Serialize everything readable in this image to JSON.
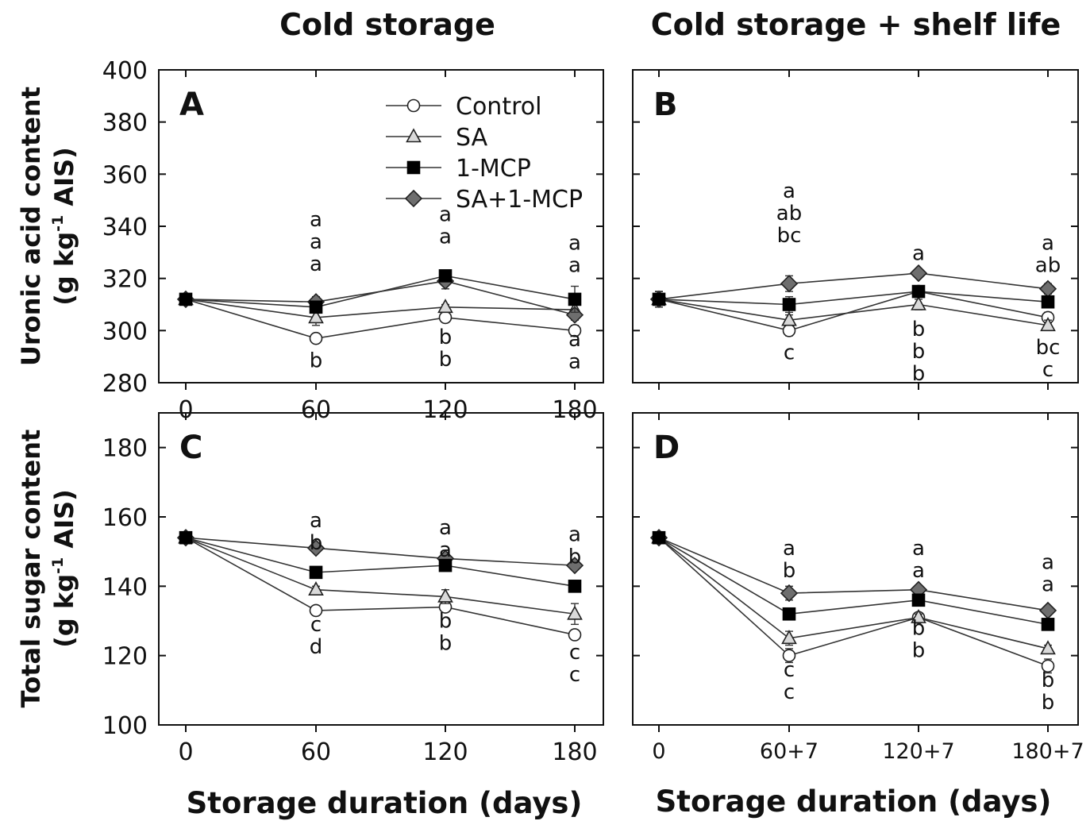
{
  "column_titles": [
    "Cold storage",
    "Cold storage + shelf life"
  ],
  "xlabel": "Storage duration (days)",
  "ylabels": {
    "top": {
      "line1": "Uronic acid content",
      "line2_pre": "(g kg",
      "line2_sup": "-1",
      "line2_post": " AIS)"
    },
    "bottom": {
      "line1": "Total sugar content",
      "line2_pre": "(g kg",
      "line2_sup": "-1",
      "line2_post": " AIS)"
    }
  },
  "legend": [
    {
      "name": "Control",
      "marker": "circle",
      "color": "#ffffff"
    },
    {
      "name": "SA",
      "marker": "triangle",
      "color": "#d9d9d9"
    },
    {
      "name": "1-MCP",
      "marker": "square",
      "color": "#000000"
    },
    {
      "name": "SA+1-MCP",
      "marker": "diamond",
      "color": "#6e6e6e"
    }
  ],
  "chart_data": [
    {
      "panel": "A",
      "type": "line",
      "title": "Cold storage",
      "categories": [
        "0",
        "60",
        "120",
        "180"
      ],
      "ylim": [
        280,
        400
      ],
      "yticks": [
        280,
        300,
        320,
        340,
        360,
        380,
        400
      ],
      "ylabel": "Uronic acid content (g kg-1 AIS)",
      "series": [
        {
          "name": "Control",
          "values": [
            312,
            297,
            305,
            300
          ],
          "err": [
            2,
            1,
            1,
            2
          ]
        },
        {
          "name": "SA",
          "values": [
            312,
            305,
            309,
            308
          ],
          "err": [
            2,
            3,
            1,
            2
          ]
        },
        {
          "name": "1-MCP",
          "values": [
            312,
            309,
            321,
            312
          ],
          "err": [
            2,
            2,
            2,
            5
          ]
        },
        {
          "name": "SA+1-MCP",
          "values": [
            312,
            311,
            319,
            306
          ],
          "err": [
            2,
            2,
            3,
            2
          ]
        }
      ],
      "letters": [
        {
          "x": "60",
          "labels": [
            "a",
            "a",
            "a"
          ],
          "at": 340,
          "dir": "down"
        },
        {
          "x": "60",
          "labels": [
            "b"
          ],
          "at": 286,
          "dir": "down"
        },
        {
          "x": "120",
          "labels": [
            "a",
            "a"
          ],
          "at": 342,
          "dir": "down"
        },
        {
          "x": "120",
          "labels": [
            "b",
            "b"
          ],
          "at": 295,
          "dir": "down"
        },
        {
          "x": "180",
          "labels": [
            "a",
            "a"
          ],
          "at": 331,
          "dir": "down"
        },
        {
          "x": "180",
          "labels": [
            "a",
            "a"
          ],
          "at": 294,
          "dir": "down"
        }
      ]
    },
    {
      "panel": "B",
      "type": "line",
      "title": "Cold storage + shelf life",
      "categories": [
        "0",
        "60+7",
        "120+7",
        "180+7"
      ],
      "ylim": [
        280,
        400
      ],
      "yticks": [
        280,
        300,
        320,
        340,
        360,
        380,
        400
      ],
      "ylabel": "Uronic acid content (g kg-1 AIS)",
      "series": [
        {
          "name": "Control",
          "values": [
            312,
            300,
            315,
            305
          ],
          "err": [
            3,
            2,
            1,
            2
          ]
        },
        {
          "name": "SA",
          "values": [
            312,
            304,
            310,
            302
          ],
          "err": [
            3,
            2,
            2,
            2
          ]
        },
        {
          "name": "1-MCP",
          "values": [
            312,
            310,
            315,
            311
          ],
          "err": [
            3,
            3,
            1,
            2
          ]
        },
        {
          "name": "SA+1-MCP",
          "values": [
            312,
            318,
            322,
            316
          ],
          "err": [
            3,
            3,
            1,
            2
          ]
        }
      ],
      "letters": [
        {
          "x": "60+7",
          "labels": [
            "a",
            "ab",
            "bc"
          ],
          "at": 351,
          "dir": "down"
        },
        {
          "x": "60+7",
          "labels": [
            "c"
          ],
          "at": 289,
          "dir": "down"
        },
        {
          "x": "120+7",
          "labels": [
            "a"
          ],
          "at": 327,
          "dir": "down"
        },
        {
          "x": "120+7",
          "labels": [
            "b",
            "b",
            "b"
          ],
          "at": 298,
          "dir": "down"
        },
        {
          "x": "180+7",
          "labels": [
            "a",
            "ab"
          ],
          "at": 331,
          "dir": "down"
        },
        {
          "x": "180+7",
          "labels": [
            "bc",
            "c"
          ],
          "at": 291,
          "dir": "down"
        }
      ]
    },
    {
      "panel": "C",
      "type": "line",
      "title": "",
      "categories": [
        "0",
        "60",
        "120",
        "180"
      ],
      "ylim": [
        100,
        190
      ],
      "yticks": [
        100,
        120,
        140,
        160,
        180
      ],
      "ylabel": "Total sugar content (g kg-1 AIS)",
      "xlabel": "Storage duration (days)",
      "series": [
        {
          "name": "Control",
          "values": [
            154,
            133,
            134,
            126
          ],
          "err": [
            1,
            1,
            1,
            1
          ]
        },
        {
          "name": "SA",
          "values": [
            154,
            139,
            137,
            132
          ],
          "err": [
            1,
            1,
            2,
            3
          ]
        },
        {
          "name": "1-MCP",
          "values": [
            154,
            144,
            146,
            140
          ],
          "err": [
            1,
            1,
            1,
            1
          ]
        },
        {
          "name": "SA+1-MCP",
          "values": [
            154,
            151,
            148,
            146
          ],
          "err": [
            1,
            1,
            1,
            1
          ]
        }
      ],
      "letters": [
        {
          "x": "60",
          "labels": [
            "a",
            "b"
          ],
          "at": 157,
          "dir": "down"
        },
        {
          "x": "60",
          "labels": [
            "c",
            "d"
          ],
          "at": 127,
          "dir": "down"
        },
        {
          "x": "120",
          "labels": [
            "a",
            "a"
          ],
          "at": 155,
          "dir": "down"
        },
        {
          "x": "120",
          "labels": [
            "b",
            "b"
          ],
          "at": 128,
          "dir": "down"
        },
        {
          "x": "180",
          "labels": [
            "a",
            "b"
          ],
          "at": 153,
          "dir": "down"
        },
        {
          "x": "180",
          "labels": [
            "c",
            "c"
          ],
          "at": 119,
          "dir": "down"
        }
      ]
    },
    {
      "panel": "D",
      "type": "line",
      "title": "",
      "categories": [
        "0",
        "60+7",
        "120+7",
        "180+7"
      ],
      "ylim": [
        100,
        190
      ],
      "yticks": [
        100,
        120,
        140,
        160,
        180
      ],
      "ylabel": "Total sugar content (g kg-1 AIS)",
      "xlabel": "Storage duration (days)",
      "series": [
        {
          "name": "Control",
          "values": [
            154,
            120,
            131,
            117
          ],
          "err": [
            1,
            2,
            1,
            2
          ]
        },
        {
          "name": "SA",
          "values": [
            154,
            125,
            131,
            122
          ],
          "err": [
            1,
            2,
            1,
            1
          ]
        },
        {
          "name": "1-MCP",
          "values": [
            154,
            132,
            136,
            129
          ],
          "err": [
            1,
            1,
            1,
            1
          ]
        },
        {
          "name": "SA+1-MCP",
          "values": [
            154,
            138,
            139,
            133
          ],
          "err": [
            1,
            2,
            1,
            1
          ]
        }
      ],
      "letters": [
        {
          "x": "60+7",
          "labels": [
            "a",
            "b"
          ],
          "at": 149,
          "dir": "down"
        },
        {
          "x": "60+7",
          "labels": [
            "c",
            "c"
          ],
          "at": 114,
          "dir": "down"
        },
        {
          "x": "120+7",
          "labels": [
            "a",
            "a"
          ],
          "at": 149,
          "dir": "down"
        },
        {
          "x": "120+7",
          "labels": [
            "b",
            "b"
          ],
          "at": 126,
          "dir": "down"
        },
        {
          "x": "180+7",
          "labels": [
            "a",
            "a"
          ],
          "at": 145,
          "dir": "down"
        },
        {
          "x": "180+7",
          "labels": [
            "b",
            "b"
          ],
          "at": 111,
          "dir": "down"
        }
      ]
    }
  ]
}
